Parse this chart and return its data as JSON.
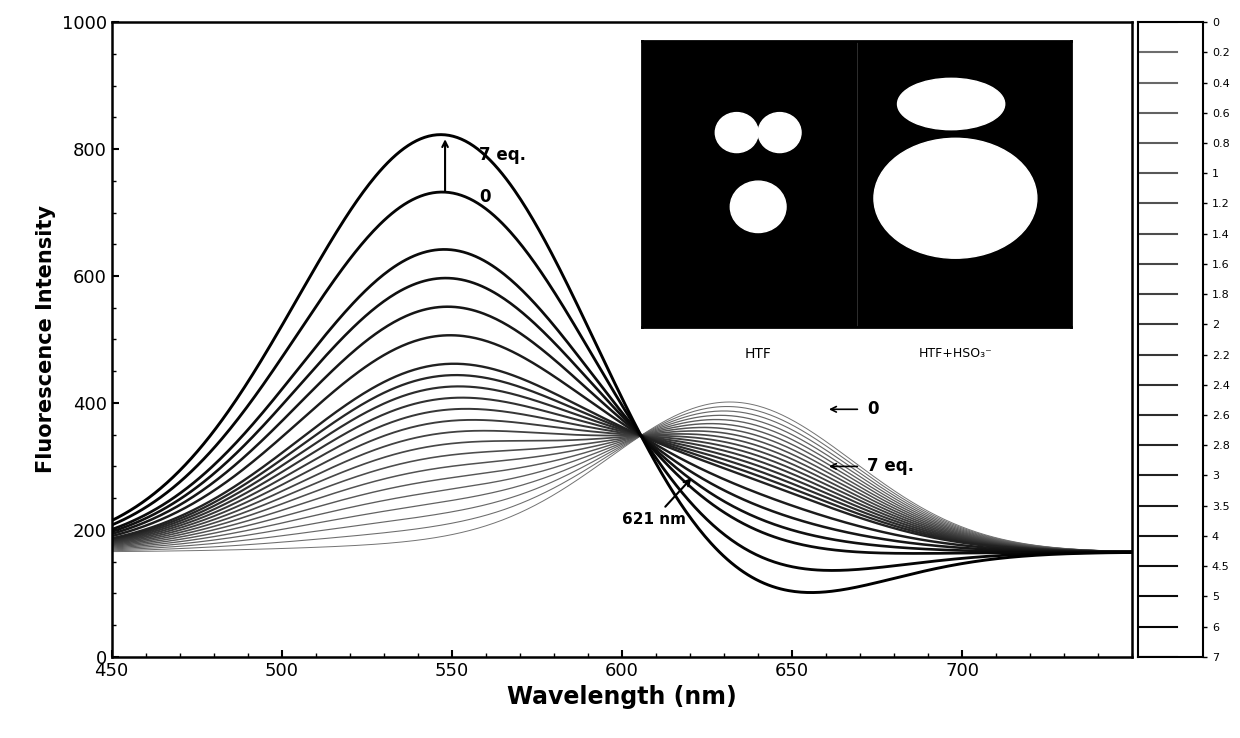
{
  "xlim": [
    450,
    750
  ],
  "ylim": [
    0,
    1000
  ],
  "xlabel": "Wavelength (nm)",
  "ylabel": "Fluorescence Intensity",
  "xlabel_fontsize": 17,
  "ylabel_fontsize": 15,
  "eq_levels": [
    0,
    0.2,
    0.4,
    0.6,
    0.8,
    1,
    1.2,
    1.4,
    1.6,
    1.8,
    2,
    2.2,
    2.4,
    2.6,
    2.8,
    3,
    3.5,
    4,
    4.5,
    5,
    6,
    7
  ],
  "cb_labels": [
    "0",
    "0.2",
    "0.4",
    "0.6",
    "0.8",
    "1",
    "1.2",
    "1.4",
    "1.6",
    "1.8",
    "2",
    "2.2",
    "2.4",
    "2.6",
    "2.8",
    "3",
    "3.5",
    "4",
    "4.5",
    "5",
    "6",
    "7"
  ],
  "background_color": "#ffffff",
  "inset_label_htf": "HTF",
  "inset_label_htfhso3": "HTF+HSO₃⁻"
}
